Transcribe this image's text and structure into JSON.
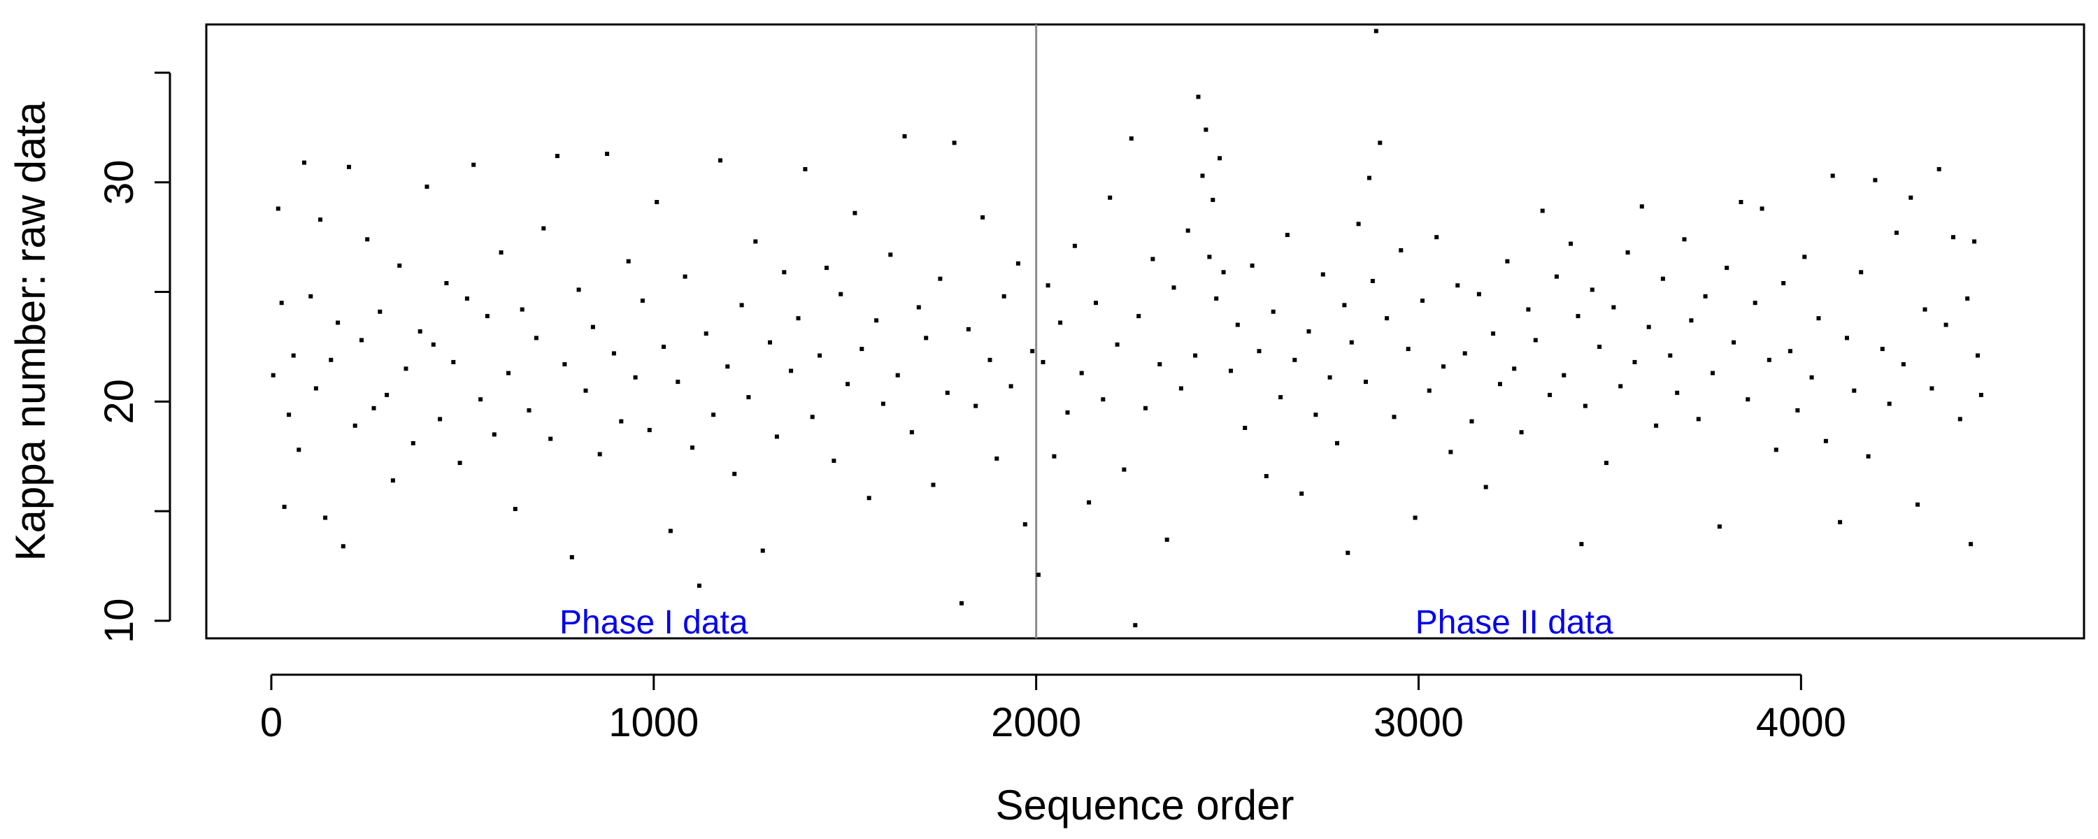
{
  "chart_data": {
    "type": "scatter",
    "title": "",
    "xlabel": "Sequence order",
    "ylabel": "Kappa number: raw data",
    "xlim": [
      -170,
      4740
    ],
    "ylim": [
      9.2,
      37.2
    ],
    "x_ticks": [
      0,
      1000,
      2000,
      3000,
      4000
    ],
    "x_tick_labels": [
      "0",
      "1000",
      "2000",
      "3000",
      "4000"
    ],
    "y_ticks": [
      10,
      15,
      20,
      25,
      30,
      35
    ],
    "y_tick_labels": [
      "10",
      "",
      "20",
      "",
      "30",
      ""
    ],
    "grid": false,
    "legend": "none",
    "point_color": "#000000",
    "annotation_color": "#0000ee",
    "divider_color": "#8a8a8a",
    "phase_divider_x": 2000,
    "annotations": [
      {
        "text": "Phase I data",
        "x": 1000,
        "y": 10
      },
      {
        "text": "Phase II data",
        "x": 3250,
        "y": 10
      }
    ],
    "series": [
      {
        "points": [
          [
            5,
            21.2
          ],
          [
            18,
            28.8
          ],
          [
            27,
            24.5
          ],
          [
            34,
            15.2
          ],
          [
            46,
            19.4
          ],
          [
            58,
            22.1
          ],
          [
            72,
            17.8
          ],
          [
            86,
            30.9
          ],
          [
            103,
            24.8
          ],
          [
            117,
            20.6
          ],
          [
            128,
            28.3
          ],
          [
            141,
            14.7
          ],
          [
            156,
            21.9
          ],
          [
            174,
            23.6
          ],
          [
            188,
            13.4
          ],
          [
            203,
            30.7
          ],
          [
            219,
            18.9
          ],
          [
            236,
            22.8
          ],
          [
            251,
            27.4
          ],
          [
            268,
            19.7
          ],
          [
            284,
            24.1
          ],
          [
            302,
            20.3
          ],
          [
            318,
            16.4
          ],
          [
            335,
            26.2
          ],
          [
            352,
            21.5
          ],
          [
            371,
            18.1
          ],
          [
            389,
            23.2
          ],
          [
            407,
            29.8
          ],
          [
            424,
            22.6
          ],
          [
            441,
            19.2
          ],
          [
            458,
            25.4
          ],
          [
            476,
            21.8
          ],
          [
            493,
            17.2
          ],
          [
            512,
            24.7
          ],
          [
            529,
            30.8
          ],
          [
            547,
            20.1
          ],
          [
            565,
            23.9
          ],
          [
            583,
            18.5
          ],
          [
            601,
            26.8
          ],
          [
            620,
            21.3
          ],
          [
            638,
            15.1
          ],
          [
            656,
            24.2
          ],
          [
            674,
            19.6
          ],
          [
            693,
            22.9
          ],
          [
            712,
            27.9
          ],
          [
            730,
            18.3
          ],
          [
            748,
            31.2
          ],
          [
            767,
            21.7
          ],
          [
            786,
            12.9
          ],
          [
            804,
            25.1
          ],
          [
            822,
            20.5
          ],
          [
            841,
            23.4
          ],
          [
            859,
            17.6
          ],
          [
            878,
            31.3
          ],
          [
            896,
            22.2
          ],
          [
            915,
            19.1
          ],
          [
            934,
            26.4
          ],
          [
            952,
            21.1
          ],
          [
            971,
            24.6
          ],
          [
            989,
            18.7
          ],
          [
            1008,
            29.1
          ],
          [
            1026,
            22.5
          ],
          [
            1044,
            14.1
          ],
          [
            1063,
            20.9
          ],
          [
            1082,
            25.7
          ],
          [
            1101,
            17.9
          ],
          [
            1119,
            11.6
          ],
          [
            1137,
            23.1
          ],
          [
            1156,
            19.4
          ],
          [
            1174,
            31.0
          ],
          [
            1193,
            21.6
          ],
          [
            1211,
            16.7
          ],
          [
            1230,
            24.4
          ],
          [
            1248,
            20.2
          ],
          [
            1266,
            27.3
          ],
          [
            1285,
            13.2
          ],
          [
            1304,
            22.7
          ],
          [
            1322,
            18.4
          ],
          [
            1341,
            25.9
          ],
          [
            1359,
            21.4
          ],
          [
            1378,
            23.8
          ],
          [
            1396,
            30.6
          ],
          [
            1415,
            19.3
          ],
          [
            1434,
            22.1
          ],
          [
            1452,
            26.1
          ],
          [
            1471,
            17.3
          ],
          [
            1489,
            24.9
          ],
          [
            1507,
            20.8
          ],
          [
            1526,
            28.6
          ],
          [
            1544,
            22.4
          ],
          [
            1563,
            15.6
          ],
          [
            1582,
            23.7
          ],
          [
            1600,
            19.9
          ],
          [
            1619,
            26.7
          ],
          [
            1638,
            21.2
          ],
          [
            1656,
            32.1
          ],
          [
            1675,
            18.6
          ],
          [
            1693,
            24.3
          ],
          [
            1712,
            22.9
          ],
          [
            1731,
            16.2
          ],
          [
            1749,
            25.6
          ],
          [
            1768,
            20.4
          ],
          [
            1786,
            31.8
          ],
          [
            1805,
            10.8
          ],
          [
            1823,
            23.3
          ],
          [
            1842,
            19.8
          ],
          [
            1860,
            28.4
          ],
          [
            1879,
            21.9
          ],
          [
            1897,
            17.4
          ],
          [
            1916,
            24.8
          ],
          [
            1934,
            20.7
          ],
          [
            1953,
            26.3
          ],
          [
            1971,
            14.4
          ],
          [
            1990,
            22.3
          ],
          [
            2006,
            12.1
          ],
          [
            2018,
            21.8
          ],
          [
            2031,
            25.3
          ],
          [
            2047,
            17.5
          ],
          [
            2063,
            23.6
          ],
          [
            2082,
            19.5
          ],
          [
            2101,
            27.1
          ],
          [
            2119,
            21.3
          ],
          [
            2138,
            15.4
          ],
          [
            2156,
            24.5
          ],
          [
            2175,
            20.1
          ],
          [
            2193,
            29.3
          ],
          [
            2212,
            22.6
          ],
          [
            2230,
            16.9
          ],
          [
            2249,
            32.0
          ],
          [
            2259,
            9.8
          ],
          [
            2268,
            23.9
          ],
          [
            2286,
            19.7
          ],
          [
            2305,
            26.5
          ],
          [
            2323,
            21.7
          ],
          [
            2342,
            13.7
          ],
          [
            2360,
            25.2
          ],
          [
            2379,
            20.6
          ],
          [
            2397,
            27.8
          ],
          [
            2416,
            22.1
          ],
          [
            2424,
            33.9
          ],
          [
            2435,
            30.3
          ],
          [
            2444,
            32.4
          ],
          [
            2453,
            26.6
          ],
          [
            2462,
            29.2
          ],
          [
            2471,
            24.7
          ],
          [
            2480,
            31.1
          ],
          [
            2490,
            25.9
          ],
          [
            2509,
            21.4
          ],
          [
            2527,
            23.5
          ],
          [
            2546,
            18.8
          ],
          [
            2565,
            26.2
          ],
          [
            2583,
            22.3
          ],
          [
            2602,
            16.6
          ],
          [
            2620,
            24.1
          ],
          [
            2639,
            20.2
          ],
          [
            2657,
            27.6
          ],
          [
            2676,
            21.9
          ],
          [
            2694,
            15.8
          ],
          [
            2713,
            23.2
          ],
          [
            2731,
            19.4
          ],
          [
            2750,
            25.8
          ],
          [
            2768,
            21.1
          ],
          [
            2787,
            18.1
          ],
          [
            2806,
            24.4
          ],
          [
            2815,
            13.1
          ],
          [
            2825,
            22.7
          ],
          [
            2843,
            28.1
          ],
          [
            2862,
            20.9
          ],
          [
            2871,
            30.2
          ],
          [
            2880,
            25.5
          ],
          [
            2889,
            36.9
          ],
          [
            2899,
            31.8
          ],
          [
            2917,
            23.8
          ],
          [
            2936,
            19.3
          ],
          [
            2954,
            26.9
          ],
          [
            2973,
            22.4
          ],
          [
            2991,
            14.7
          ],
          [
            3010,
            24.6
          ],
          [
            3028,
            20.5
          ],
          [
            3047,
            27.5
          ],
          [
            3065,
            21.6
          ],
          [
            3084,
            17.7
          ],
          [
            3102,
            25.3
          ],
          [
            3121,
            22.2
          ],
          [
            3139,
            19.1
          ],
          [
            3158,
            24.9
          ],
          [
            3176,
            16.1
          ],
          [
            3195,
            23.1
          ],
          [
            3213,
            20.8
          ],
          [
            3232,
            26.4
          ],
          [
            3250,
            21.5
          ],
          [
            3269,
            18.6
          ],
          [
            3287,
            24.2
          ],
          [
            3306,
            22.8
          ],
          [
            3324,
            28.7
          ],
          [
            3343,
            20.3
          ],
          [
            3361,
            25.7
          ],
          [
            3380,
            21.2
          ],
          [
            3398,
            27.2
          ],
          [
            3417,
            23.9
          ],
          [
            3426,
            13.5
          ],
          [
            3436,
            19.8
          ],
          [
            3454,
            25.1
          ],
          [
            3473,
            22.5
          ],
          [
            3491,
            17.2
          ],
          [
            3510,
            24.3
          ],
          [
            3528,
            20.7
          ],
          [
            3547,
            26.8
          ],
          [
            3565,
            21.8
          ],
          [
            3584,
            28.9
          ],
          [
            3602,
            23.4
          ],
          [
            3621,
            18.9
          ],
          [
            3639,
            25.6
          ],
          [
            3658,
            22.1
          ],
          [
            3676,
            20.4
          ],
          [
            3695,
            27.4
          ],
          [
            3713,
            23.7
          ],
          [
            3732,
            19.2
          ],
          [
            3750,
            24.8
          ],
          [
            3769,
            21.3
          ],
          [
            3787,
            14.3
          ],
          [
            3806,
            26.1
          ],
          [
            3824,
            22.7
          ],
          [
            3843,
            29.1
          ],
          [
            3861,
            20.1
          ],
          [
            3880,
            24.5
          ],
          [
            3898,
            28.8
          ],
          [
            3917,
            21.9
          ],
          [
            3935,
            17.8
          ],
          [
            3954,
            25.4
          ],
          [
            3972,
            22.3
          ],
          [
            3991,
            19.6
          ],
          [
            4009,
            26.6
          ],
          [
            4028,
            21.1
          ],
          [
            4046,
            23.8
          ],
          [
            4065,
            18.2
          ],
          [
            4083,
            30.3
          ],
          [
            4102,
            14.5
          ],
          [
            4120,
            22.9
          ],
          [
            4139,
            20.5
          ],
          [
            4157,
            25.9
          ],
          [
            4176,
            17.5
          ],
          [
            4194,
            30.1
          ],
          [
            4213,
            22.4
          ],
          [
            4231,
            19.9
          ],
          [
            4250,
            27.7
          ],
          [
            4268,
            21.7
          ],
          [
            4287,
            29.3
          ],
          [
            4305,
            15.3
          ],
          [
            4324,
            24.2
          ],
          [
            4342,
            20.6
          ],
          [
            4361,
            30.6
          ],
          [
            4379,
            23.5
          ],
          [
            4398,
            27.5
          ],
          [
            4416,
            19.2
          ],
          [
            4435,
            24.7
          ],
          [
            4444,
            13.5
          ],
          [
            4453,
            27.3
          ],
          [
            4462,
            22.1
          ],
          [
            4471,
            20.3
          ]
        ]
      }
    ]
  }
}
